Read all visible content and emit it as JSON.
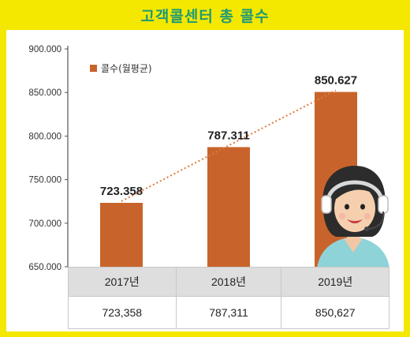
{
  "title": "고객콜센터 총 콜수",
  "chart_data": {
    "type": "bar",
    "categories": [
      "2017년",
      "2018년",
      "2019년"
    ],
    "values": [
      723358,
      787311,
      850627
    ],
    "value_labels": [
      "723.358",
      "787.311",
      "850.627"
    ],
    "series": [
      {
        "name": "콜수(월평균)",
        "values": [
          723358,
          787311,
          850627
        ]
      }
    ],
    "yticks": [
      "900.000",
      "850.000",
      "800.000",
      "750.000",
      "700.000",
      "650.000"
    ],
    "ylim": [
      650000,
      900000
    ],
    "legend": "top-left",
    "grid": false,
    "trend_line": true,
    "bar_color": "#c8642b",
    "trend_color": "#e07a3a"
  },
  "table": {
    "headers": [
      "2017년",
      "2018년",
      "2019년"
    ],
    "values": [
      "723,358",
      "787,311",
      "850,627"
    ]
  },
  "colors": {
    "background": "#f4e800",
    "title": "#1f9a76",
    "bar": "#c8642b"
  },
  "icons": [
    "call-center-agent-icon"
  ]
}
